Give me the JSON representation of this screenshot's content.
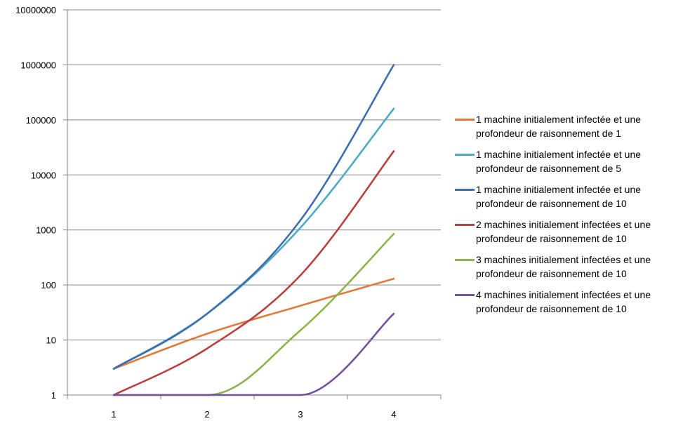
{
  "chart_data": {
    "type": "line",
    "scale": "log10",
    "x": [
      1,
      2,
      3,
      4
    ],
    "xticks": [
      "1",
      "2",
      "3",
      "4"
    ],
    "yticks": [
      "1",
      "10",
      "100",
      "1000",
      "10000",
      "100000",
      "1000000",
      "10000000"
    ],
    "ylim": [
      1,
      10000000
    ],
    "grid": "horizontal",
    "legend_position": "right",
    "series": [
      {
        "name": "1 machine initialement infectée et une profondeur de raisonnement de 1",
        "color": "#e07b39",
        "values": [
          3,
          13,
          42,
          130
        ]
      },
      {
        "name": "1 machine initialement infectée et une profondeur de raisonnement de 5",
        "color": "#4aacc5",
        "values": [
          3,
          30,
          1100,
          160000
        ]
      },
      {
        "name": "1 machine initialement infectée et une profondeur de raisonnement de 10",
        "color": "#3d6eae",
        "values": [
          3,
          30,
          1500,
          1000000
        ]
      },
      {
        "name": "2 machines initialement infectées et une profondeur de raisonnement de 10",
        "color": "#b8413f",
        "values": [
          1,
          7,
          150,
          27000
        ]
      },
      {
        "name": "3 machines initialement infectées et une profondeur de raisonnement de 10",
        "color": "#8db44a",
        "values": [
          1,
          1,
          15,
          850
        ]
      },
      {
        "name": "4 machines initialement infectées et une profondeur de raisonnement de 10",
        "color": "#7451a0",
        "values": [
          1,
          1,
          1,
          30
        ]
      }
    ]
  }
}
